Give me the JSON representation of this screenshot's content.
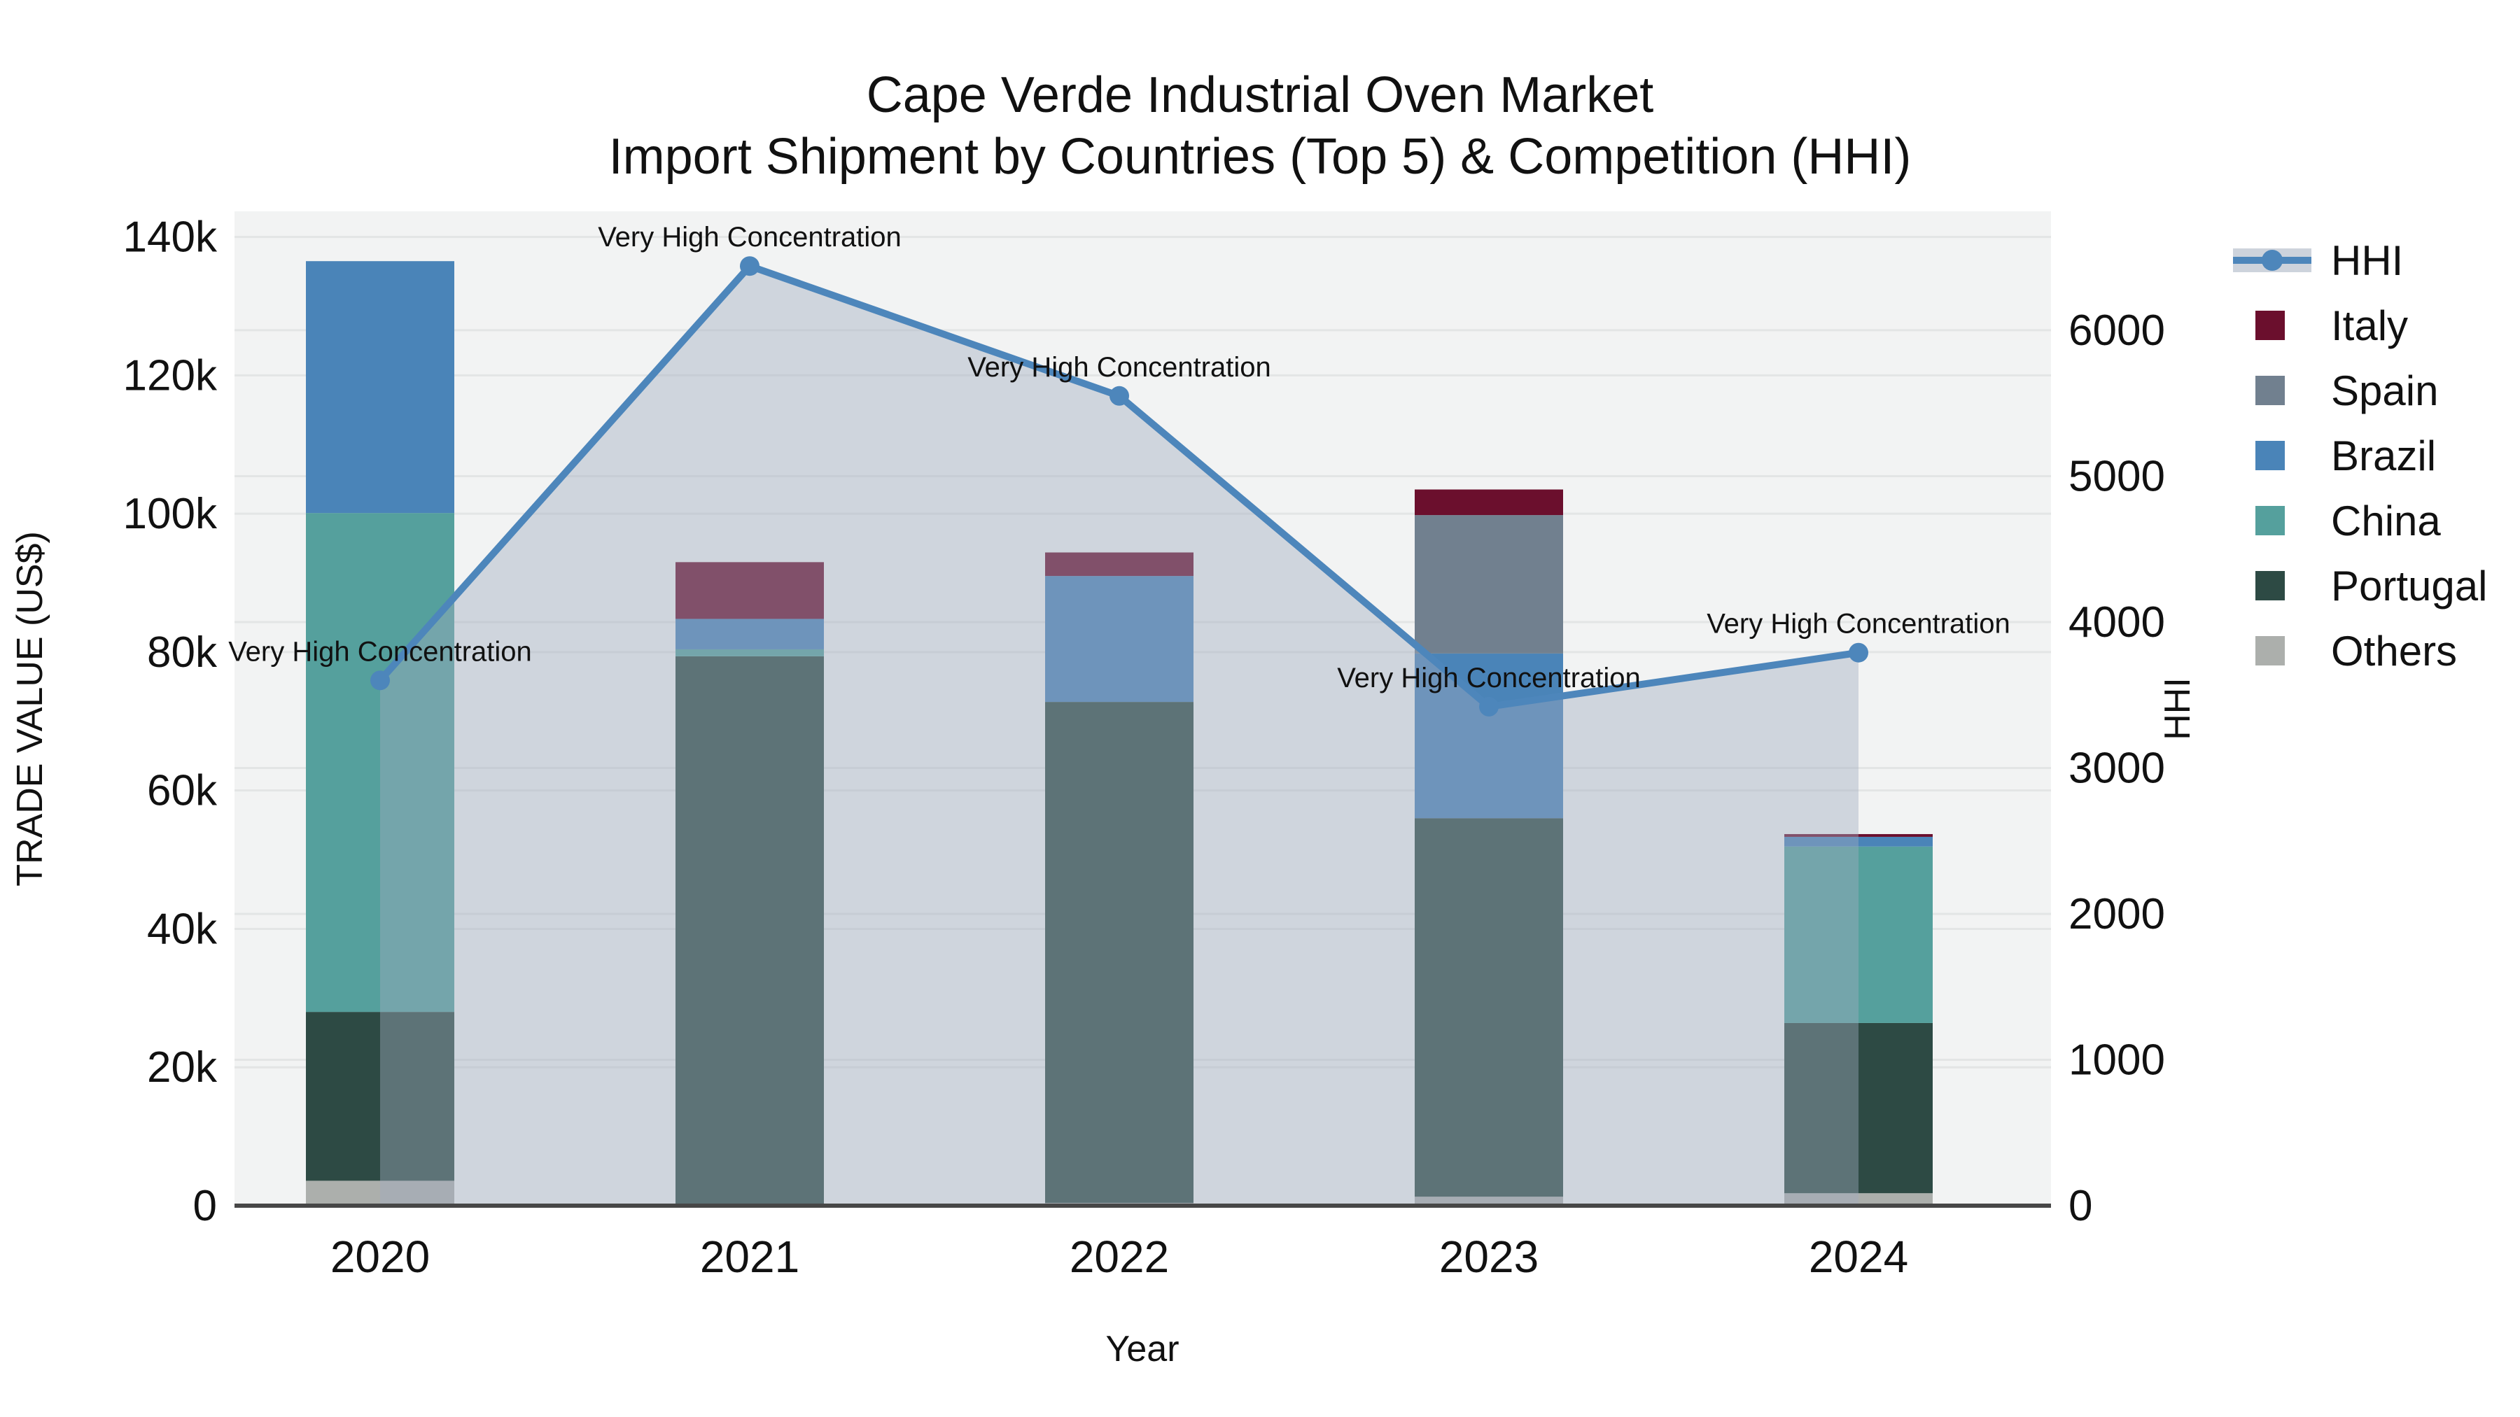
{
  "title": {
    "line1": "Cape Verde Industrial Oven Market",
    "line2": "Import Shipment by Countries (Top 5) & Competition (HHI)"
  },
  "chart_data": {
    "type": "combo: stacked bar (left axis) + line with shaded area (right axis)",
    "x_label": "Year",
    "y_left_label": "TRADE VALUE (US$)",
    "y_right_label": "HHI",
    "categories": [
      "2020",
      "2021",
      "2022",
      "2023",
      "2024"
    ],
    "y_left_tick_labels": [
      "0",
      "20k",
      "40k",
      "60k",
      "80k",
      "100k",
      "120k",
      "140k"
    ],
    "y_left_tick_values": [
      0,
      20000,
      40000,
      60000,
      80000,
      100000,
      120000,
      140000
    ],
    "y_left_max": 143700,
    "y_right_tick_labels": [
      "0",
      "1000",
      "2000",
      "3000",
      "4000",
      "5000",
      "6000"
    ],
    "y_right_tick_values": [
      0,
      1000,
      2000,
      3000,
      4000,
      5000,
      6000
    ],
    "y_right_max": 6815,
    "stack_order_bottom_to_top": [
      "Others",
      "Portugal",
      "China",
      "Brazil",
      "Spain",
      "Italy"
    ],
    "bar_series": [
      {
        "name": "Italy",
        "color": "#6B0F2D",
        "values": [
          0,
          8200,
          3400,
          3700,
          400
        ]
      },
      {
        "name": "Spain",
        "color": "#71808F",
        "values": [
          0,
          0,
          0,
          20000,
          0
        ]
      },
      {
        "name": "Brazil",
        "color": "#4A84B8",
        "values": [
          36400,
          4400,
          18200,
          23800,
          1400
        ]
      },
      {
        "name": "China",
        "color": "#55A09D",
        "values": [
          72100,
          1000,
          0,
          0,
          25500
        ]
      },
      {
        "name": "Portugal",
        "color": "#2D4A44",
        "values": [
          24400,
          79400,
          72400,
          54700,
          24600
        ]
      },
      {
        "name": "Others",
        "color": "#ACAFAC",
        "values": [
          3600,
          0,
          400,
          1300,
          1800
        ]
      }
    ],
    "hhi": {
      "name": "HHI",
      "color": "#4D86BB",
      "area_color": "rgba(160,172,190,0.42)",
      "values": [
        3600,
        6440,
        5550,
        3420,
        3790
      ],
      "annotations": [
        "Very High Concentration",
        "Very High Concentration",
        "Very High Concentration",
        "Very High Concentration",
        "Very High Concentration"
      ]
    },
    "background": {
      "figure": "#FFFFFF",
      "plot": "#F2F3F3",
      "grid": "#E3E5E5",
      "axis_line": "#474747"
    }
  }
}
